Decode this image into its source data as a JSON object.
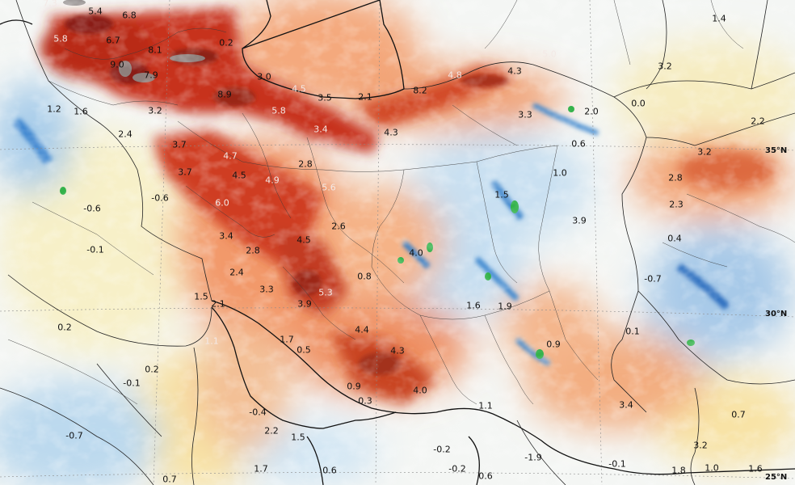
{
  "map": {
    "latitude_labels": [
      "35°N",
      "30°N",
      "25°N"
    ],
    "values": [
      {
        "text": "7.3",
        "light": true
      },
      {
        "text": "5.4",
        "light": false
      },
      {
        "text": "6.8",
        "light": false
      },
      {
        "text": "1.4",
        "light": false
      },
      {
        "text": "5.8",
        "light": true
      },
      {
        "text": "6.7",
        "light": false
      },
      {
        "text": "0.2",
        "light": false
      },
      {
        "text": "5.0",
        "light": true
      },
      {
        "text": "9.0",
        "light": false
      },
      {
        "text": "8.1",
        "light": false
      },
      {
        "text": "3.0",
        "light": false
      },
      {
        "text": "3.2",
        "light": false
      },
      {
        "text": "7.9",
        "light": false
      },
      {
        "text": "8.2",
        "light": false
      },
      {
        "text": "4.8",
        "light": true
      },
      {
        "text": "4.3",
        "light": false
      },
      {
        "text": "4.5",
        "light": true
      },
      {
        "text": "3.5",
        "light": false
      },
      {
        "text": "2.1",
        "light": false
      },
      {
        "text": "1.2",
        "light": false
      },
      {
        "text": "1.6",
        "light": false
      },
      {
        "text": "3.2",
        "light": false
      },
      {
        "text": "8.9",
        "light": false
      },
      {
        "text": "0.0",
        "light": false
      },
      {
        "text": "5.8",
        "light": true
      },
      {
        "text": "3.3",
        "light": false
      },
      {
        "text": "2.0",
        "light": false
      },
      {
        "text": "2.2",
        "light": false
      },
      {
        "text": "2.4",
        "light": false
      },
      {
        "text": "3.4",
        "light": true
      },
      {
        "text": "4.3",
        "light": false
      },
      {
        "text": "0.6",
        "light": false
      },
      {
        "text": "3.7",
        "light": false
      },
      {
        "text": "3.2",
        "light": false
      },
      {
        "text": "4.7",
        "light": true
      },
      {
        "text": "2.8",
        "light": false
      },
      {
        "text": "3.7",
        "light": false
      },
      {
        "text": "4.5",
        "light": false
      },
      {
        "text": "4.9",
        "light": true
      },
      {
        "text": "1.0",
        "light": false
      },
      {
        "text": "2.8",
        "light": false
      },
      {
        "text": "5.6",
        "light": true
      },
      {
        "text": "-0.6",
        "light": false
      },
      {
        "text": "6.0",
        "light": true
      },
      {
        "text": "1.5",
        "light": false
      },
      {
        "text": "2.3",
        "light": false
      },
      {
        "text": "-0.6",
        "light": false
      },
      {
        "text": "3.9",
        "light": false
      },
      {
        "text": "2.6",
        "light": false
      },
      {
        "text": "3.4",
        "light": false
      },
      {
        "text": "0.4",
        "light": false
      },
      {
        "text": "4.5",
        "light": false
      },
      {
        "text": "-0.1",
        "light": false
      },
      {
        "text": "2.8",
        "light": false
      },
      {
        "text": "4.0",
        "light": false
      },
      {
        "text": "2.4",
        "light": false
      },
      {
        "text": "0.8",
        "light": false
      },
      {
        "text": "-0.7",
        "light": false
      },
      {
        "text": "3.3",
        "light": false
      },
      {
        "text": "5.3",
        "light": true
      },
      {
        "text": "1.5",
        "light": false
      },
      {
        "text": "2.1",
        "light": false
      },
      {
        "text": "3.9",
        "light": false
      },
      {
        "text": "1.6",
        "light": false
      },
      {
        "text": "1.9",
        "light": false
      },
      {
        "text": "0.2",
        "light": false
      },
      {
        "text": "0.1",
        "light": false
      },
      {
        "text": "4.4",
        "light": false
      },
      {
        "text": "1.7",
        "light": false
      },
      {
        "text": "1.1",
        "light": true
      },
      {
        "text": "0.5",
        "light": false
      },
      {
        "text": "4.3",
        "light": false
      },
      {
        "text": "0.9",
        "light": false
      },
      {
        "text": "0.2",
        "light": false
      },
      {
        "text": "-0.1",
        "light": false
      },
      {
        "text": "0.9",
        "light": false
      },
      {
        "text": "4.0",
        "light": false
      },
      {
        "text": "0.3",
        "light": false
      },
      {
        "text": "3.4",
        "light": false
      },
      {
        "text": "1.1",
        "light": false
      },
      {
        "text": "-0.4",
        "light": false
      },
      {
        "text": "0.7",
        "light": false
      },
      {
        "text": "-0.7",
        "light": false
      },
      {
        "text": "2.2",
        "light": false
      },
      {
        "text": "1.5",
        "light": false
      },
      {
        "text": "-0.2",
        "light": false
      },
      {
        "text": "3.2",
        "light": false
      },
      {
        "text": "-1.9",
        "light": false
      },
      {
        "text": "1.7",
        "light": false
      },
      {
        "text": "0.6",
        "light": false
      },
      {
        "text": "-0.2",
        "light": false
      },
      {
        "text": "-0.1",
        "light": false
      },
      {
        "text": "1.8",
        "light": false
      },
      {
        "text": "1.0",
        "light": false
      },
      {
        "text": "1.6",
        "light": false
      },
      {
        "text": "0.7",
        "light": false
      },
      {
        "text": "0.6",
        "light": false
      }
    ]
  }
}
